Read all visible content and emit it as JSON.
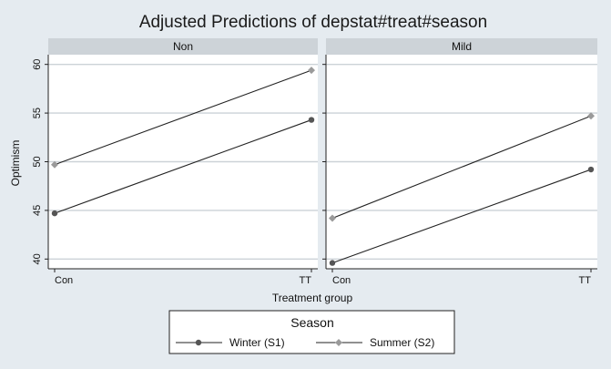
{
  "chart_data": {
    "type": "line",
    "title": "Adjusted Predictions of depstat#treat#season",
    "xlabel": "Treatment group",
    "ylabel": "Optimism",
    "categories": [
      "Con",
      "TT"
    ],
    "ylim": [
      39,
      61
    ],
    "yticks": [
      40,
      45,
      50,
      55,
      60
    ],
    "grid": true,
    "legend": {
      "title": "Season",
      "placement": "bottom",
      "entries": [
        "Winter (S1)",
        "Summer (S2)"
      ]
    },
    "colors": {
      "winter": "#555555",
      "summer": "#9a9a9a",
      "line": "#222222"
    },
    "panels": [
      {
        "label": "Non",
        "series": [
          {
            "name": "Winter (S1)",
            "marker": "circle",
            "values": [
              44.7,
              54.3
            ]
          },
          {
            "name": "Summer (S2)",
            "marker": "diamond",
            "values": [
              49.7,
              59.4
            ]
          }
        ]
      },
      {
        "label": "Mild",
        "series": [
          {
            "name": "Winter (S1)",
            "marker": "circle",
            "values": [
              39.6,
              49.2
            ]
          },
          {
            "name": "Summer (S2)",
            "marker": "diamond",
            "values": [
              44.2,
              54.7
            ]
          }
        ]
      }
    ]
  }
}
